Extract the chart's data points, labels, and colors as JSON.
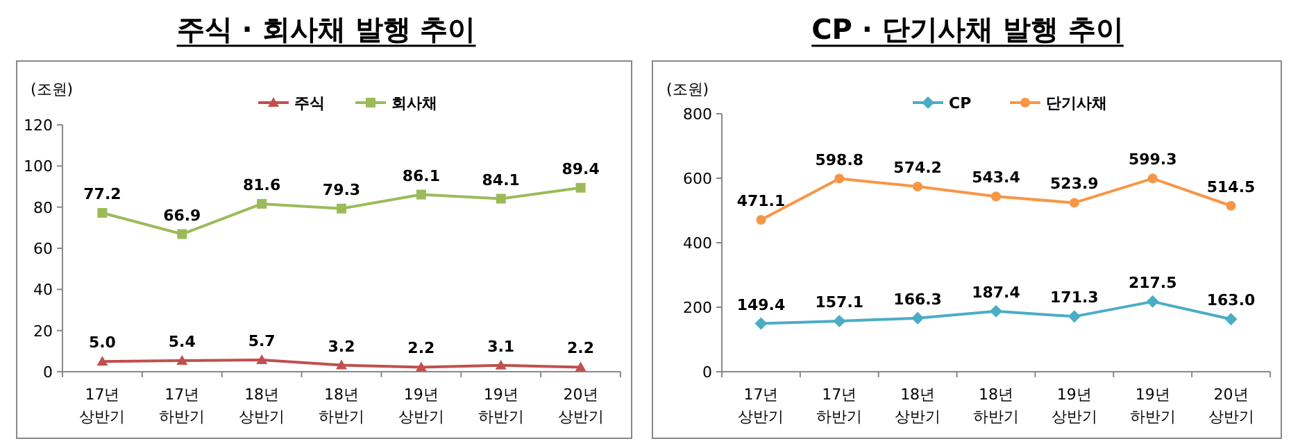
{
  "chart_data": [
    {
      "type": "line",
      "title": "주식 · 회사채 발행 추이",
      "ylabel": "(조원)",
      "categories": [
        "17년\n상반기",
        "17년\n하반기",
        "18년\n상반기",
        "18년\n하반기",
        "19년\n상반기",
        "19년\n하반기",
        "20년\n상반기"
      ],
      "ylim": [
        0,
        120
      ],
      "yticks": [
        0,
        20,
        40,
        60,
        80,
        100,
        120
      ],
      "grid": false,
      "legend": "top",
      "data_labels": true,
      "series": [
        {
          "name": "주식",
          "color": "#c0504d",
          "marker": "triangle",
          "values": [
            5.0,
            5.4,
            5.7,
            3.2,
            2.2,
            3.1,
            2.2
          ],
          "value_labels": [
            "5.0",
            "5.4",
            "5.7",
            "3.2",
            "2.2",
            "3.1",
            "2.2"
          ]
        },
        {
          "name": "회사채",
          "color": "#9bbb59",
          "marker": "square",
          "values": [
            77.2,
            66.9,
            81.6,
            79.3,
            86.1,
            84.1,
            89.4
          ],
          "value_labels": [
            "77.2",
            "66.9",
            "81.6",
            "79.3",
            "86.1",
            "84.1",
            "89.4"
          ]
        }
      ]
    },
    {
      "type": "line",
      "title": "CP · 단기사채 발행 추이",
      "ylabel": "(조원)",
      "categories": [
        "17년\n상반기",
        "17년\n하반기",
        "18년\n상반기",
        "18년\n하반기",
        "19년\n상반기",
        "19년\n하반기",
        "20년\n상반기"
      ],
      "ylim": [
        0,
        800
      ],
      "yticks": [
        0,
        200,
        400,
        600,
        800
      ],
      "grid": false,
      "legend": "top",
      "data_labels": true,
      "series": [
        {
          "name": "CP",
          "color": "#4bacc6",
          "marker": "diamond",
          "values": [
            149.4,
            157.1,
            166.3,
            187.4,
            171.3,
            217.5,
            163.0
          ],
          "value_labels": [
            "149.4",
            "157.1",
            "166.3",
            "187.4",
            "171.3",
            "217.5",
            "163.0"
          ]
        },
        {
          "name": "단기사채",
          "color": "#f79646",
          "marker": "circle",
          "values": [
            471.1,
            598.8,
            574.2,
            543.4,
            523.9,
            599.3,
            514.5
          ],
          "value_labels": [
            "471.1",
            "598.8",
            "574.2",
            "543.4",
            "523.9",
            "599.3",
            "514.5"
          ]
        }
      ]
    }
  ]
}
